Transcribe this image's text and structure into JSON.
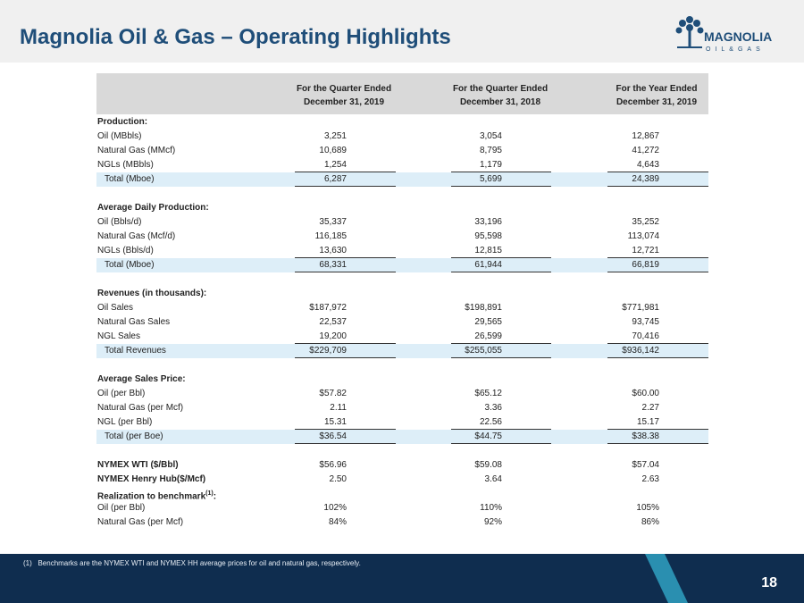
{
  "header": {
    "title": "Magnolia Oil & Gas – Operating Highlights",
    "logo": {
      "name": "MAGNOLIA",
      "tagline": "OIL&GAS"
    }
  },
  "table": {
    "columns": [
      [
        "For the Quarter Ended",
        "December 31, 2019"
      ],
      [
        "For the Quarter Ended",
        "December 31, 2018"
      ],
      [
        "For the Year Ended",
        "December 31, 2019"
      ]
    ],
    "rows": [
      {
        "label": "Production:",
        "style": "heading"
      },
      {
        "label": "Oil (MBbls)",
        "values": [
          "3,251",
          "3,054",
          "12,867"
        ]
      },
      {
        "label": "Natural Gas (MMcf)",
        "values": [
          "10,689",
          "8,795",
          "41,272"
        ]
      },
      {
        "label": "NGLs (MBbls)",
        "values": [
          "1,254",
          "1,179",
          "4,643"
        ]
      },
      {
        "label": "Total (Mboe)",
        "values": [
          "6,287",
          "5,699",
          "24,389"
        ],
        "style": "total"
      },
      {
        "label": "Average Daily Production:",
        "style": "heading"
      },
      {
        "label": "Oil (Bbls/d)",
        "values": [
          "35,337",
          "33,196",
          "35,252"
        ]
      },
      {
        "label": "Natural Gas (Mcf/d)",
        "values": [
          "116,185",
          "95,598",
          "113,074"
        ]
      },
      {
        "label": "NGLs (Bbls/d)",
        "values": [
          "13,630",
          "12,815",
          "12,721"
        ]
      },
      {
        "label": "Total (Mboe)",
        "values": [
          "68,331",
          "61,944",
          "66,819"
        ],
        "style": "total"
      },
      {
        "label": "Revenues (in thousands):",
        "style": "heading"
      },
      {
        "label": "Oil Sales",
        "values": [
          "$187,972",
          "$198,891",
          "$771,981"
        ]
      },
      {
        "label": "Natural Gas Sales",
        "values": [
          "22,537",
          "29,565",
          "93,745"
        ]
      },
      {
        "label": "NGL Sales",
        "values": [
          "19,200",
          "26,599",
          "70,416"
        ]
      },
      {
        "label": "Total Revenues",
        "values": [
          "$229,709",
          "$255,055",
          "$936,142"
        ],
        "style": "total"
      },
      {
        "label": "Average Sales Price:",
        "style": "heading"
      },
      {
        "label": "Oil (per Bbl)",
        "values": [
          "$57.82",
          "$65.12",
          "$60.00"
        ]
      },
      {
        "label": "Natural Gas (per Mcf)",
        "values": [
          "2.11",
          "3.36",
          "2.27"
        ]
      },
      {
        "label": "NGL (per Bbl)",
        "values": [
          "15.31",
          "22.56",
          "15.17"
        ]
      },
      {
        "label": "Total (per Boe)",
        "values": [
          "$36.54",
          "$44.75",
          "$38.38"
        ],
        "style": "total"
      },
      {
        "label": "NYMEX WTI ($/Bbl)",
        "values": [
          "$56.96",
          "$59.08",
          "$57.04"
        ],
        "style": "bold"
      },
      {
        "label": "NYMEX Henry Hub($/Mcf)",
        "values": [
          "2.50",
          "3.64",
          "2.63"
        ],
        "style": "bold"
      },
      {
        "label": "Realization to benchmark",
        "sup": "(1)",
        "tail": ":",
        "style": "bold"
      },
      {
        "label": "Oil (per Bbl)",
        "values": [
          "102%",
          "110%",
          "105%"
        ]
      },
      {
        "label": "Natural Gas (per Mcf)",
        "values": [
          "84%",
          "92%",
          "86%"
        ]
      }
    ]
  },
  "footer": {
    "note": {
      "marker": "(1)",
      "text": "Benchmarks are the NYMEX WTI and NYMEX HH average prices for oil and natural gas, respectively."
    },
    "page": "18"
  }
}
